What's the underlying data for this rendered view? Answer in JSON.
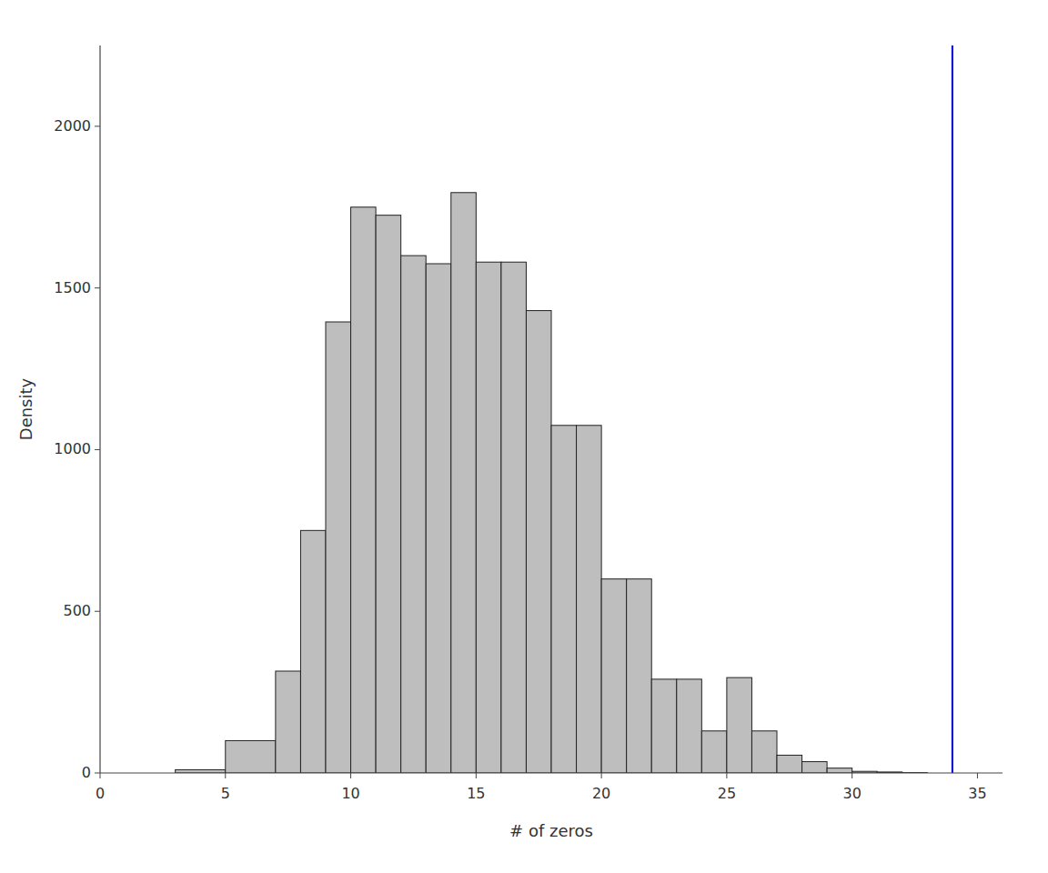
{
  "chart_data": {
    "type": "histogram",
    "x_label": "# of zeros",
    "y_label": "Density",
    "bins": [
      3,
      5,
      7,
      8,
      9,
      10,
      11,
      12,
      13,
      14,
      15,
      16,
      17,
      18,
      19,
      20,
      21,
      22,
      23,
      24,
      25,
      26,
      27,
      28,
      29,
      30,
      31,
      32,
      33
    ],
    "values": [
      10,
      100,
      315,
      750,
      1395,
      1750,
      1725,
      1600,
      1575,
      1795,
      1580,
      1580,
      1430,
      1075,
      1075,
      600,
      600,
      290,
      290,
      130,
      295,
      130,
      55,
      35,
      15,
      5,
      3,
      1
    ],
    "color": "#bebebe",
    "reference_line": {
      "x": 34,
      "color": "#0000cd"
    },
    "xlim": [
      0,
      36
    ],
    "ylim": [
      0,
      2250
    ],
    "xticks": [
      0,
      5,
      10,
      15,
      20,
      25,
      30,
      35
    ],
    "yticks": [
      0,
      500,
      1000,
      1500,
      2000
    ]
  }
}
